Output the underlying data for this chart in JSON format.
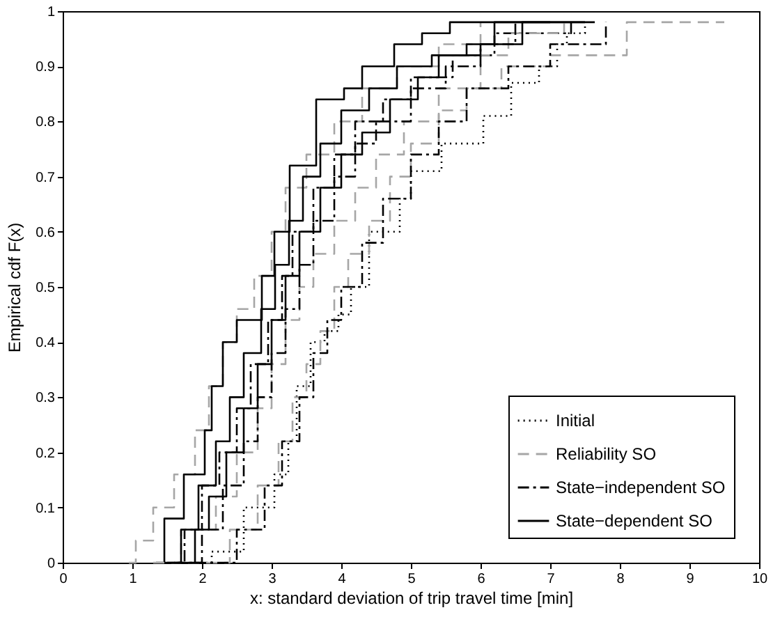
{
  "chart_data": {
    "type": "step",
    "xlabel": "x: standard deviation of trip travel time [min]",
    "ylabel": "Empirical cdf F(x)",
    "xlim": [
      0,
      10
    ],
    "xticks": [
      0,
      1,
      2,
      3,
      4,
      5,
      6,
      7,
      8,
      9,
      10
    ],
    "ylim": [
      0,
      1
    ],
    "yticks": [
      0,
      0.1,
      0.2,
      0.3,
      0.4,
      0.5,
      0.6,
      0.7,
      0.8,
      0.9,
      1
    ],
    "legend": "bottom right",
    "grid": false,
    "series": [
      {
        "name": "Initial",
        "color": "#000000",
        "line_style": "dotted",
        "x": [
          1.9,
          2.14,
          2.6,
          3.04,
          3.24,
          3.36,
          3.56,
          3.76,
          3.96,
          4.14,
          4.4,
          4.84,
          5.0,
          5.44,
          6.04,
          6.44,
          6.84,
          7.1,
          7.24,
          7.5
        ],
        "values": [
          0,
          0.02,
          0.1,
          0.16,
          0.22,
          0.32,
          0.4,
          0.42,
          0.45,
          0.5,
          0.6,
          0.66,
          0.71,
          0.76,
          0.81,
          0.87,
          0.9,
          0.94,
          0.96,
          0.98
        ]
      },
      {
        "name": "Reliability SO",
        "color": "#a6a6a6",
        "line_style": "dashed",
        "x": [
          0.95,
          1.05,
          1.3,
          1.6,
          1.9,
          2.1,
          2.3,
          2.5,
          2.75,
          3.0,
          3.2,
          3.5,
          3.9,
          4.3,
          4.8,
          5.4,
          6.0
        ],
        "values": [
          0,
          0.04,
          0.1,
          0.16,
          0.24,
          0.32,
          0.4,
          0.46,
          0.52,
          0.6,
          0.68,
          0.74,
          0.8,
          0.86,
          0.9,
          0.94,
          0.98
        ]
      },
      {
        "name": "State−independent SO",
        "color": "#000000",
        "line_style": "dashdot",
        "x": [
          1.45,
          1.75,
          2.0,
          2.25,
          2.5,
          2.7,
          2.95,
          3.15,
          3.3,
          3.6,
          3.9,
          4.2,
          4.6,
          5.0,
          5.6,
          6.2,
          7.3
        ],
        "values": [
          0,
          0.06,
          0.14,
          0.2,
          0.28,
          0.36,
          0.44,
          0.52,
          0.6,
          0.68,
          0.74,
          0.8,
          0.84,
          0.88,
          0.92,
          0.96,
          0.98
        ]
      },
      {
        "name": "State−dependent SO",
        "color": "#000000",
        "line_style": "solid",
        "x": [
          1.34,
          1.46,
          1.74,
          2.04,
          2.14,
          2.3,
          2.5,
          2.86,
          3.04,
          3.26,
          3.64,
          4.04,
          4.3,
          4.76,
          5.16,
          5.56,
          7.64
        ],
        "values": [
          0,
          0.08,
          0.16,
          0.24,
          0.32,
          0.4,
          0.44,
          0.52,
          0.6,
          0.72,
          0.84,
          0.86,
          0.9,
          0.94,
          0.96,
          0.98,
          0.98
        ]
      },
      {
        "color": "#a6a6a6",
        "line_style": "dashed",
        "x": [
          1.3,
          1.7,
          2.2,
          2.5,
          2.8,
          3.0,
          3.2,
          3.4,
          3.6,
          3.9,
          4.2,
          4.5,
          4.9,
          5.4,
          6.0,
          6.4,
          7.2
        ],
        "values": [
          0,
          0.06,
          0.12,
          0.2,
          0.28,
          0.36,
          0.44,
          0.5,
          0.56,
          0.62,
          0.68,
          0.74,
          0.8,
          0.86,
          0.92,
          0.96,
          0.98
        ]
      },
      {
        "color": "#a6a6a6",
        "line_style": "dashed",
        "x": [
          1.8,
          2.4,
          2.8,
          3.1,
          3.3,
          3.5,
          3.7,
          3.9,
          4.1,
          4.4,
          4.7,
          5.0,
          5.4,
          5.8,
          6.3,
          7.0,
          8.1,
          9.5
        ],
        "values": [
          0,
          0.06,
          0.14,
          0.22,
          0.3,
          0.36,
          0.42,
          0.5,
          0.56,
          0.62,
          0.7,
          0.76,
          0.82,
          0.86,
          0.9,
          0.92,
          0.98,
          0.98
        ]
      },
      {
        "color": "#000000",
        "line_style": "dashdot",
        "x": [
          1.6,
          2.0,
          2.3,
          2.6,
          2.8,
          3.0,
          3.2,
          3.4,
          3.6,
          3.9,
          4.2,
          4.5,
          5.0,
          5.5,
          6.0,
          6.5
        ],
        "values": [
          0,
          0.06,
          0.14,
          0.22,
          0.3,
          0.38,
          0.46,
          0.54,
          0.62,
          0.7,
          0.76,
          0.8,
          0.86,
          0.9,
          0.94,
          0.98
        ]
      },
      {
        "color": "#000000",
        "line_style": "dashdot",
        "x": [
          1.9,
          2.5,
          2.9,
          3.15,
          3.4,
          3.6,
          3.8,
          4.0,
          4.3,
          4.6,
          5.0,
          5.4,
          5.8,
          6.4,
          7.0,
          7.8
        ],
        "values": [
          0,
          0.06,
          0.14,
          0.22,
          0.3,
          0.38,
          0.44,
          0.5,
          0.58,
          0.66,
          0.74,
          0.8,
          0.86,
          0.9,
          0.94,
          0.98
        ]
      },
      {
        "color": "#000000",
        "line_style": "solid",
        "x": [
          1.5,
          1.7,
          1.95,
          2.2,
          2.4,
          2.6,
          2.85,
          3.05,
          3.25,
          3.45,
          3.7,
          4.0,
          4.4,
          4.8,
          5.3,
          5.8,
          6.2,
          7.0
        ],
        "values": [
          0,
          0.06,
          0.14,
          0.22,
          0.3,
          0.38,
          0.46,
          0.54,
          0.62,
          0.7,
          0.76,
          0.82,
          0.86,
          0.9,
          0.92,
          0.94,
          0.98,
          0.98
        ]
      },
      {
        "color": "#000000",
        "line_style": "solid",
        "x": [
          1.65,
          1.9,
          2.1,
          2.35,
          2.6,
          2.8,
          3.0,
          3.2,
          3.4,
          3.7,
          4.0,
          4.3,
          4.7,
          5.1,
          5.4,
          6.0,
          6.6,
          7.5
        ],
        "values": [
          0,
          0.06,
          0.12,
          0.2,
          0.28,
          0.36,
          0.44,
          0.52,
          0.6,
          0.68,
          0.74,
          0.78,
          0.84,
          0.88,
          0.92,
          0.94,
          0.98,
          0.98
        ]
      }
    ]
  }
}
